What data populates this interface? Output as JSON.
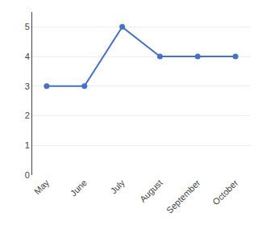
{
  "chart_data": {
    "type": "line",
    "categories": [
      "May",
      "June",
      "July",
      "August",
      "September",
      "October"
    ],
    "values": [
      3,
      3,
      5,
      4,
      4,
      4
    ],
    "color": "#4472C4",
    "marker": "circle",
    "ylim": [
      0,
      5.5
    ],
    "yticks": [
      0,
      1,
      2,
      3,
      4,
      5
    ],
    "grid": true
  }
}
